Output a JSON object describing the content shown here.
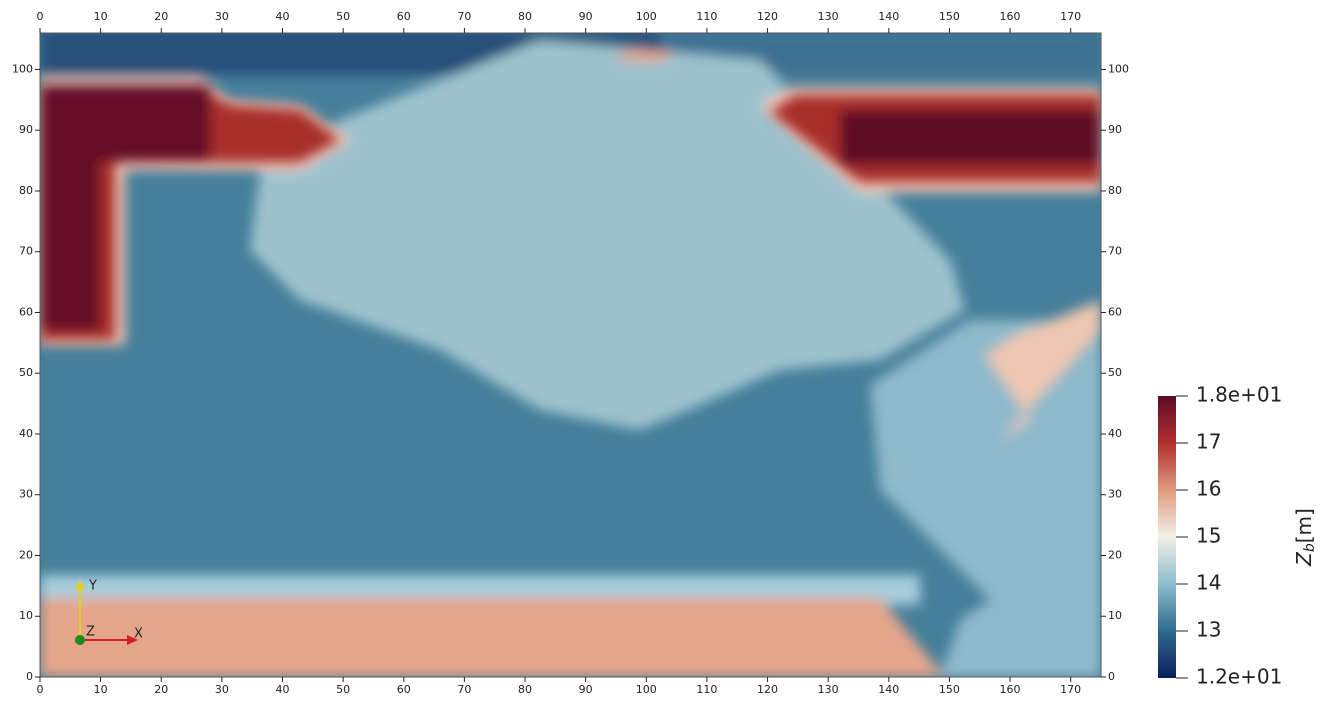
{
  "chart_data": {
    "type": "heatmap",
    "xlim": [
      0,
      175
    ],
    "ylim": [
      0,
      106
    ],
    "xticks": [
      0,
      10,
      20,
      30,
      40,
      50,
      60,
      70,
      80,
      90,
      100,
      110,
      120,
      130,
      140,
      150,
      160,
      170
    ],
    "yticks": [
      0,
      10,
      20,
      30,
      40,
      50,
      60,
      70,
      80,
      90,
      100
    ],
    "colorbar": {
      "label": {
        "symbol": "Z",
        "subscript": "b",
        "unit": "[m]"
      },
      "lim": [
        12,
        18
      ],
      "ticks": [
        {
          "value": 18,
          "label": "1.8e+01"
        },
        17,
        16,
        15,
        14,
        13,
        {
          "value": 12,
          "label": "1.2e+01"
        }
      ],
      "colormap": [
        {
          "value": 12,
          "color": "#0b1f5c"
        },
        {
          "value": 13,
          "color": "#2f6b8f"
        },
        {
          "value": 14,
          "color": "#8cbccd"
        },
        {
          "value": 15,
          "color": "#f3f0e6"
        },
        {
          "value": 16,
          "color": "#e09a7e"
        },
        {
          "value": 17,
          "color": "#b0302c"
        },
        {
          "value": 18,
          "color": "#5c0a26"
        }
      ]
    },
    "triad": {
      "x": "X",
      "y": "Y",
      "z": "Z"
    }
  }
}
